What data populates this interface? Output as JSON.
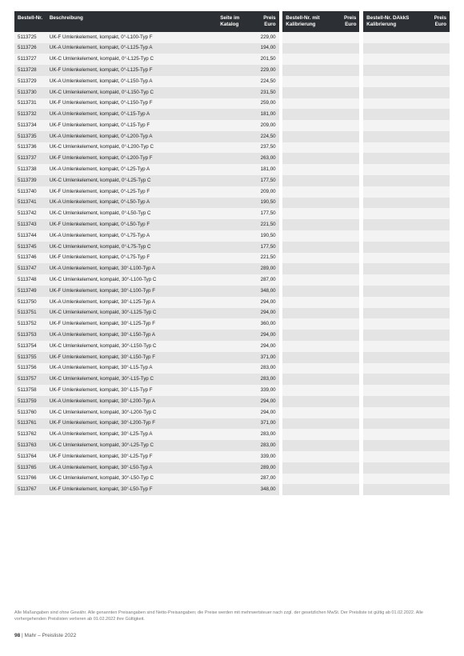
{
  "columns": {
    "order": "Bestell-Nr.",
    "desc": "Beschreibung",
    "page": "Seite im\nKatalog",
    "price": "Preis\nEuro",
    "order2": "Bestell-Nr.\nmit Kalibrierung",
    "price2": "Preis\nEuro",
    "order3": "Bestell-Nr.\nDAkkS Kalibrierung",
    "price3": "Preis\nEuro"
  },
  "rows": [
    {
      "n": "5113725",
      "d": "UK-F Umlenkelement, kompakt, 0°-L100-Typ F",
      "p": "229,00"
    },
    {
      "n": "5113726",
      "d": "UK-A Umlenkelement, kompakt, 0°-L125-Typ A",
      "p": "194,00"
    },
    {
      "n": "5113727",
      "d": "UK-C Umlenkelement, kompakt, 0°-L125-Typ C",
      "p": "201,50"
    },
    {
      "n": "5113728",
      "d": "UK-F Umlenkelement, kompakt, 0°-L125-Typ F",
      "p": "229,00"
    },
    {
      "n": "5113729",
      "d": "UK-A Umlenkelement, kompakt, 0°-L150-Typ A",
      "p": "224,50"
    },
    {
      "n": "5113730",
      "d": "UK-C Umlenkelement, kompakt, 0°-L150-Typ C",
      "p": "231,50"
    },
    {
      "n": "5113731",
      "d": "UK-F Umlenkelement, kompakt, 0°-L150-Typ F",
      "p": "259,00"
    },
    {
      "n": "5113732",
      "d": "UK-A Umlenkelement, kompakt, 0°-L15-Typ A",
      "p": "181,00"
    },
    {
      "n": "5113734",
      "d": "UK-F Umlenkelement, kompakt, 0°-L15-Typ F",
      "p": "209,00"
    },
    {
      "n": "5113735",
      "d": "UK-A Umlenkelement, kompakt, 0°-L200-Typ A",
      "p": "224,50"
    },
    {
      "n": "5113736",
      "d": "UK-C Umlenkelement, kompakt, 0°-L200-Typ C",
      "p": "237,50"
    },
    {
      "n": "5113737",
      "d": "UK-F Umlenkelement, kompakt, 0°-L200-Typ F",
      "p": "263,00"
    },
    {
      "n": "5113738",
      "d": "UK-A Umlenkelement, kompakt, 0°-L25-Typ A",
      "p": "181,00"
    },
    {
      "n": "5113739",
      "d": "UK-C Umlenkelement, kompakt, 0°-L25-Typ C",
      "p": "177,50"
    },
    {
      "n": "5113740",
      "d": "UK-F Umlenkelement, kompakt, 0°-L25-Typ F",
      "p": "209,00"
    },
    {
      "n": "5113741",
      "d": "UK-A Umlenkelement, kompakt, 0°-L50-Typ A",
      "p": "190,50"
    },
    {
      "n": "5113742",
      "d": "UK-C Umlenkelement, kompakt, 0°-L50-Typ C",
      "p": "177,50"
    },
    {
      "n": "5113743",
      "d": "UK-F Umlenkelement, kompakt, 0°-L50-Typ F",
      "p": "221,50"
    },
    {
      "n": "5113744",
      "d": "UK-A Umlenkelement, kompakt, 0°-L75-Typ A",
      "p": "190,50"
    },
    {
      "n": "5113745",
      "d": "UK-C Umlenkelement, kompakt, 0°-L75-Typ C",
      "p": "177,50"
    },
    {
      "n": "5113746",
      "d": "UK-F Umlenkelement, kompakt, 0°-L75-Typ F",
      "p": "221,50"
    },
    {
      "n": "5113747",
      "d": "UK-A Umlenkelement, kompakt, 30°-L100-Typ A",
      "p": "289,00"
    },
    {
      "n": "5113748",
      "d": "UK-C Umlenkelement, kompakt, 30°-L100-Typ C",
      "p": "287,00"
    },
    {
      "n": "5113749",
      "d": "UK-F Umlenkelement, kompakt, 30°-L100-Typ F",
      "p": "348,00"
    },
    {
      "n": "5113750",
      "d": "UK-A Umlenkelement, kompakt, 30°-L125-Typ A",
      "p": "294,00"
    },
    {
      "n": "5113751",
      "d": "UK-C Umlenkelement, kompakt, 30°-L125-Typ C",
      "p": "294,00"
    },
    {
      "n": "5113752",
      "d": "UK-F Umlenkelement, kompakt, 30°-L125-Typ F",
      "p": "360,00"
    },
    {
      "n": "5113753",
      "d": "UK-A Umlenkelement, kompakt, 30°-L150-Typ A",
      "p": "294,00"
    },
    {
      "n": "5113754",
      "d": "UK-C Umlenkelement, kompakt, 30°-L150-Typ C",
      "p": "294,00"
    },
    {
      "n": "5113755",
      "d": "UK-F Umlenkelement, kompakt, 30°-L150-Typ F",
      "p": "371,00"
    },
    {
      "n": "5113756",
      "d": "UK-A Umlenkelement, kompakt, 30°-L15-Typ A",
      "p": "283,00"
    },
    {
      "n": "5113757",
      "d": "UK-C Umlenkelement, kompakt, 30°-L15-Typ C",
      "p": "283,00"
    },
    {
      "n": "5113758",
      "d": "UK-F Umlenkelement, kompakt, 30°-L15-Typ F",
      "p": "339,00"
    },
    {
      "n": "5113759",
      "d": "UK-A Umlenkelement, kompakt, 30°-L200-Typ A",
      "p": "294,00"
    },
    {
      "n": "5113760",
      "d": "UK-C Umlenkelement, kompakt, 30°-L200-Typ C",
      "p": "294,00"
    },
    {
      "n": "5113761",
      "d": "UK-F Umlenkelement, kompakt, 30°-L200-Typ F",
      "p": "371,00"
    },
    {
      "n": "5113762",
      "d": "UK-A Umlenkelement, kompakt, 30°-L25-Typ A",
      "p": "283,00"
    },
    {
      "n": "5113763",
      "d": "UK-C Umlenkelement, kompakt, 30°-L25-Typ C",
      "p": "283,00"
    },
    {
      "n": "5113764",
      "d": "UK-F Umlenkelement, kompakt, 30°-L25-Typ F",
      "p": "339,00"
    },
    {
      "n": "5113765",
      "d": "UK-A Umlenkelement, kompakt, 30°-L50-Typ A",
      "p": "289,00"
    },
    {
      "n": "5113766",
      "d": "UK-C Umlenkelement, kompakt, 30°-L50-Typ C",
      "p": "287,00"
    },
    {
      "n": "5113767",
      "d": "UK-F Umlenkelement, kompakt, 30°-L50-Typ F",
      "p": "348,00"
    }
  ],
  "footnote": "Alle Maßangaben sind ohne Gewähr. Alle genannten Preisangaben sind Netto-Preisangaben; die Preise werden mit mehrwertsteuer nach zzgl. der gesetzlichen MwSt.\nDer Preisliste ist gültig ab 01.02.2022. Alle vorhergehenden Preislisten verlieren ab 01.02.2022 ihre Gültigkeit.",
  "pagefoot_num": "98",
  "pagefoot_sep": " | ",
  "pagefoot_txt": "Mahr – Preisliste 2022"
}
